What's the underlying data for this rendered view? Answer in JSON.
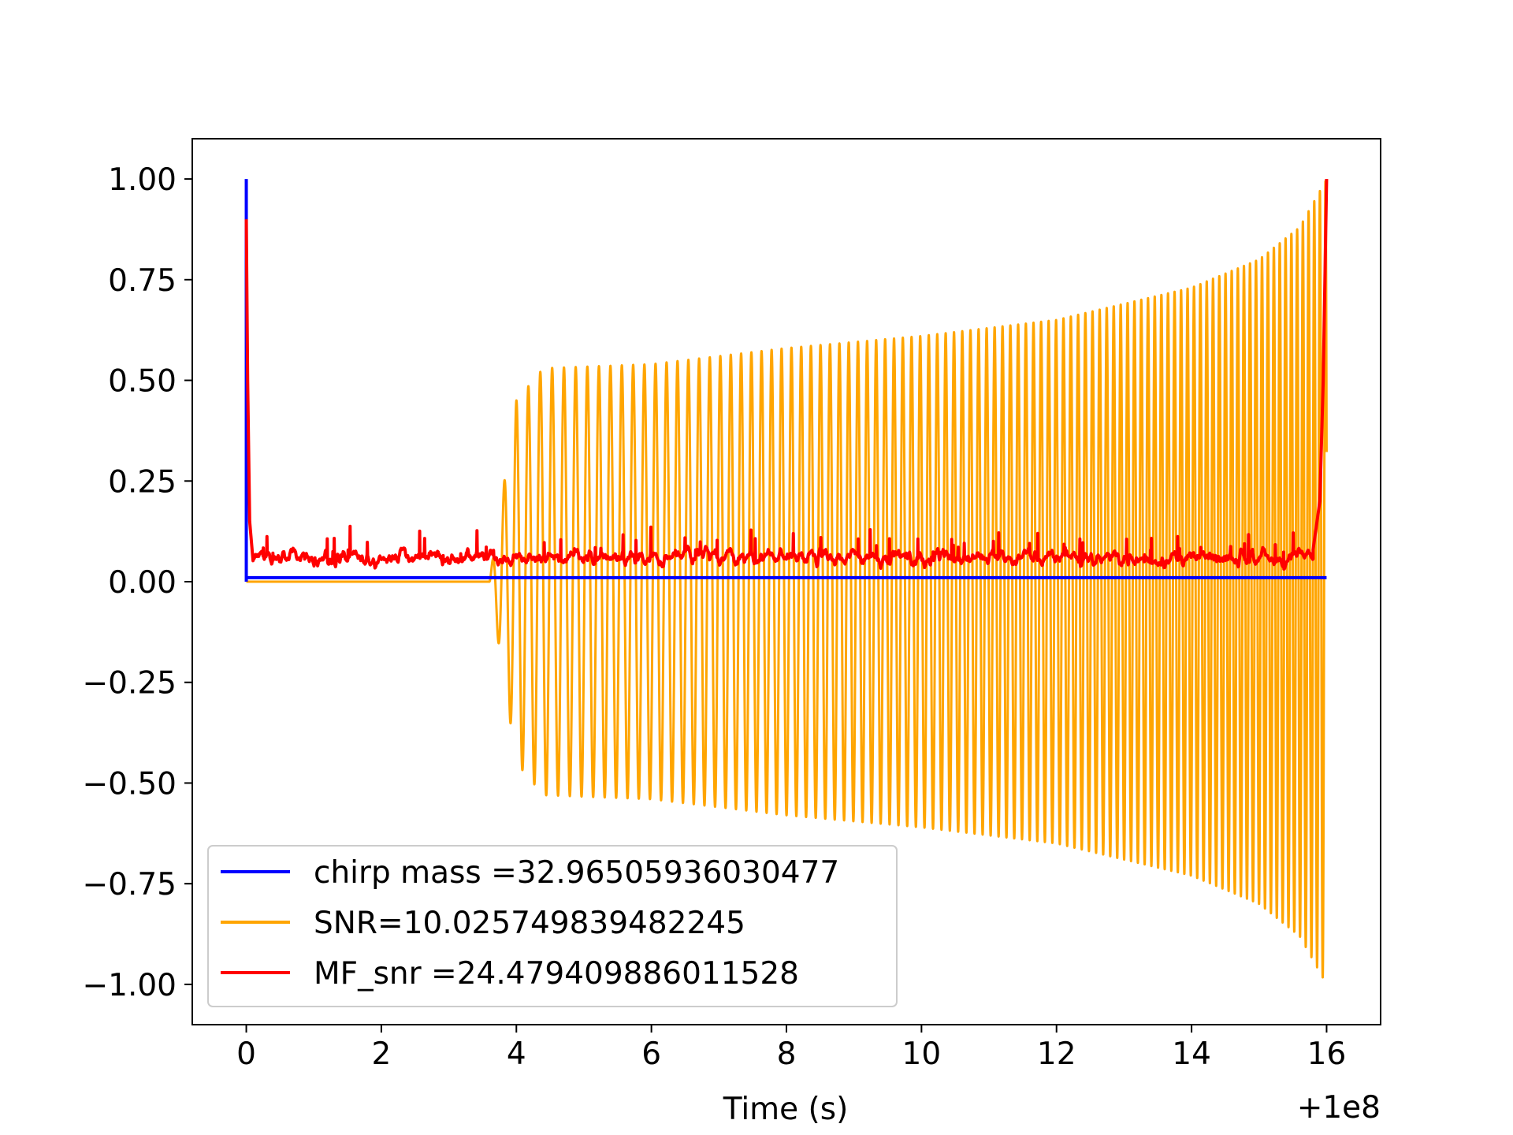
{
  "chart_data": {
    "type": "line",
    "title": "",
    "xlabel": "Time (s)",
    "ylabel": "",
    "x_offset_label": "+1e8",
    "xlim": [
      -0.8,
      16.8
    ],
    "ylim": [
      -1.1,
      1.1
    ],
    "xticks": [
      0,
      2,
      4,
      6,
      8,
      10,
      12,
      14,
      16
    ],
    "xtick_labels": [
      "0",
      "2",
      "4",
      "6",
      "8",
      "10",
      "12",
      "14",
      "16"
    ],
    "yticks": [
      1.0,
      0.75,
      0.5,
      0.25,
      0.0,
      -0.25,
      -0.5,
      -0.75,
      -1.0
    ],
    "ytick_labels": [
      "1.00",
      "0.75",
      "0.50",
      "0.25",
      "0.00",
      "−0.25",
      "−0.50",
      "−0.75",
      "−1.00"
    ],
    "grid": false,
    "legend_position": "lower-left",
    "series": [
      {
        "name": "chirp mass =32.96505936030477",
        "color": "#0000ff",
        "x": [
          0.0,
          0.0,
          0.0,
          16.0
        ],
        "y": [
          0.0,
          1.0,
          0.01,
          0.01
        ]
      },
      {
        "name": "SNR=10.025749839482245",
        "color": "#ffa500",
        "description_values": {
          "signal_start": 3.6,
          "envelope_x": [
            3.6,
            4.0,
            4.4,
            6.0,
            8.0,
            10.0,
            12.0,
            14.0,
            15.0,
            15.6,
            16.0
          ],
          "envelope_y": [
            0.0,
            0.45,
            0.53,
            0.54,
            0.58,
            0.61,
            0.65,
            0.73,
            0.8,
            0.88,
            1.0
          ]
        }
      },
      {
        "name": "MF_snr =24.479409886011528",
        "color": "#ff0000",
        "x": [
          0.0,
          0.02,
          0.05,
          0.1,
          15.8,
          15.9,
          15.95,
          16.0
        ],
        "y": [
          0.9,
          0.5,
          0.15,
          0.05,
          0.08,
          0.2,
          0.5,
          1.0
        ]
      }
    ]
  }
}
